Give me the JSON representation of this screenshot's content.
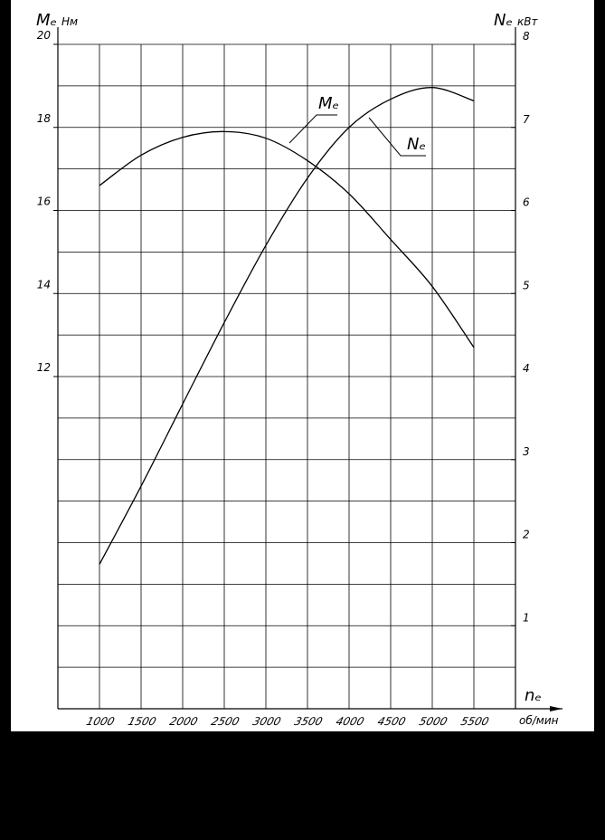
{
  "chart_data": {
    "type": "line",
    "y_label": "Mₑ",
    "y_unit": "Нм",
    "y2_label": "Nₑ",
    "y2_unit": "кВт",
    "x_label": "nₑ",
    "x_unit": "об/мин",
    "x": [
      1000,
      1500,
      2000,
      2500,
      3000,
      3500,
      4000,
      4500,
      5000,
      5500
    ],
    "series": [
      {
        "name": "Mₑ",
        "color": "#000000",
        "values": [
          16.6,
          17.33,
          17.76,
          17.9,
          17.74,
          17.2,
          16.4,
          15.3,
          14.17,
          12.7
        ]
      },
      {
        "name": "Nₑ",
        "color": "#000000",
        "axis": "y2",
        "values": [
          1.74,
          2.68,
          3.67,
          4.65,
          5.58,
          6.39,
          7.0,
          7.34,
          7.48,
          7.32
        ]
      }
    ],
    "xlim": [
      500,
      6000
    ],
    "xticks": [
      1000,
      1500,
      2000,
      2500,
      3000,
      3500,
      4000,
      4500,
      5000,
      5500
    ],
    "ylim": [
      4,
      20
    ],
    "yticks": [
      12,
      14,
      16,
      18,
      20
    ],
    "y2lim": [
      0,
      8
    ],
    "y2ticks": [
      1,
      2,
      3,
      4,
      5,
      6,
      7,
      8
    ],
    "ygrid": [
      5,
      6,
      7,
      8,
      9,
      10,
      11,
      12,
      13,
      14,
      15,
      16,
      17,
      18,
      19,
      20
    ],
    "grid": true
  }
}
